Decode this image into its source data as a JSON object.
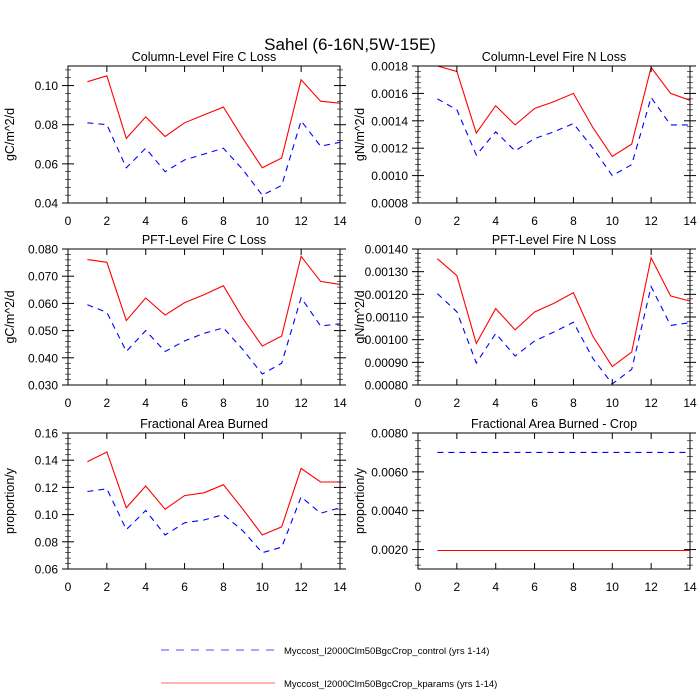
{
  "figure": {
    "title": "Sahel (6-16N,5W-15E)"
  },
  "legend": {
    "placement": "bottom-center",
    "entries": [
      {
        "label": "Myccost_I2000Clm50BgcCrop_control (yrs 1-14)",
        "color": "#0000ff",
        "style": "dashed"
      },
      {
        "label": "Myccost_I2000Clm50BgcCrop_kparams (yrs 1-14)",
        "color": "#ff0000",
        "style": "solid"
      }
    ]
  },
  "chart_data": [
    {
      "type": "line",
      "title": "Column-Level Fire C Loss",
      "xlabel": "",
      "ylabel": "gC/m^2/d",
      "xlim": [
        0,
        14
      ],
      "ylim": [
        0.04,
        0.11
      ],
      "xticks": [
        0,
        2,
        4,
        6,
        8,
        10,
        12,
        14
      ],
      "xtick_labels": [
        "0",
        "2",
        "4",
        "6",
        "8",
        "10",
        "12",
        "14"
      ],
      "yticks": [
        0.04,
        0.06,
        0.08,
        0.1
      ],
      "ytick_labels": [
        "0.04",
        "0.06",
        "0.08",
        "0.10"
      ],
      "grid": false,
      "x": [
        1,
        2,
        3,
        4,
        5,
        6,
        7,
        8,
        9,
        10,
        11,
        12,
        13,
        14
      ],
      "series": [
        {
          "name": "Myccost_I2000Clm50BgcCrop_control (yrs 1-14)",
          "color": "#0000ff",
          "style": "dashed",
          "values": [
            0.081,
            0.08,
            0.058,
            0.068,
            0.056,
            0.062,
            0.065,
            0.068,
            0.057,
            0.044,
            0.049,
            0.082,
            0.069,
            0.071
          ]
        },
        {
          "name": "Myccost_I2000Clm50BgcCrop_kparams (yrs 1-14)",
          "color": "#ff0000",
          "style": "solid",
          "values": [
            0.102,
            0.105,
            0.073,
            0.084,
            0.074,
            0.081,
            0.085,
            0.089,
            0.073,
            0.058,
            0.063,
            0.103,
            0.092,
            0.091
          ]
        }
      ]
    },
    {
      "type": "line",
      "title": "Column-Level Fire N Loss",
      "xlabel": "",
      "ylabel": "gN/m^2/d",
      "xlim": [
        0,
        14
      ],
      "ylim": [
        0.0008,
        0.0018
      ],
      "xticks": [
        0,
        2,
        4,
        6,
        8,
        10,
        12,
        14
      ],
      "xtick_labels": [
        "0",
        "2",
        "4",
        "6",
        "8",
        "10",
        "12",
        "14"
      ],
      "yticks": [
        0.0008,
        0.001,
        0.0012,
        0.0014,
        0.0016,
        0.0018
      ],
      "ytick_labels": [
        "0.0008",
        "0.0010",
        "0.0012",
        "0.0014",
        "0.0016",
        "0.0018"
      ],
      "grid": false,
      "x": [
        1,
        2,
        3,
        4,
        5,
        6,
        7,
        8,
        9,
        10,
        11,
        12,
        13,
        14
      ],
      "series": [
        {
          "name": "Myccost_I2000Clm50BgcCrop_control (yrs 1-14)",
          "color": "#0000ff",
          "style": "dashed",
          "values": [
            0.00156,
            0.00148,
            0.00115,
            0.00132,
            0.00118,
            0.00127,
            0.00132,
            0.00138,
            0.0012,
            0.001,
            0.00108,
            0.00157,
            0.00137,
            0.00137
          ]
        },
        {
          "name": "Myccost_I2000Clm50BgcCrop_kparams (yrs 1-14)",
          "color": "#ff0000",
          "style": "solid",
          "values": [
            0.0018,
            0.00176,
            0.00131,
            0.00151,
            0.00137,
            0.00149,
            0.00154,
            0.0016,
            0.00135,
            0.00114,
            0.00123,
            0.00179,
            0.0016,
            0.00155
          ]
        }
      ]
    },
    {
      "type": "line",
      "title": "PFT-Level Fire C Loss",
      "xlabel": "",
      "ylabel": "gC/m^2/d",
      "xlim": [
        0,
        14
      ],
      "ylim": [
        0.03,
        0.08
      ],
      "xticks": [
        0,
        2,
        4,
        6,
        8,
        10,
        12,
        14
      ],
      "xtick_labels": [
        "0",
        "2",
        "4",
        "6",
        "8",
        "10",
        "12",
        "14"
      ],
      "yticks": [
        0.03,
        0.04,
        0.05,
        0.06,
        0.07,
        0.08
      ],
      "ytick_labels": [
        "0.030",
        "0.040",
        "0.050",
        "0.060",
        "0.070",
        "0.080"
      ],
      "grid": false,
      "x": [
        1,
        2,
        3,
        4,
        5,
        6,
        7,
        8,
        9,
        10,
        11,
        12,
        13,
        14
      ],
      "series": [
        {
          "name": "Myccost_I2000Clm50BgcCrop_control (yrs 1-14)",
          "color": "#0000ff",
          "style": "dashed",
          "values": [
            0.0595,
            0.0567,
            0.0423,
            0.05,
            0.0423,
            0.0462,
            0.049,
            0.051,
            0.043,
            0.034,
            0.038,
            0.0621,
            0.0517,
            0.0525
          ]
        },
        {
          "name": "Myccost_I2000Clm50BgcCrop_kparams (yrs 1-14)",
          "color": "#ff0000",
          "style": "solid",
          "values": [
            0.0761,
            0.0751,
            0.0537,
            0.062,
            0.0557,
            0.0603,
            0.0632,
            0.0665,
            0.0545,
            0.0443,
            0.048,
            0.0773,
            0.0681,
            0.067
          ]
        }
      ]
    },
    {
      "type": "line",
      "title": "PFT-Level Fire N Loss",
      "xlabel": "",
      "ylabel": "gN/m^2/d",
      "xlim": [
        0,
        14
      ],
      "ylim": [
        0.0008,
        0.0014
      ],
      "xticks": [
        0,
        2,
        4,
        6,
        8,
        10,
        12,
        14
      ],
      "xtick_labels": [
        "0",
        "2",
        "4",
        "6",
        "8",
        "10",
        "12",
        "14"
      ],
      "yticks": [
        0.0008,
        0.0009,
        0.001,
        0.0011,
        0.0012,
        0.0013,
        0.0014
      ],
      "ytick_labels": [
        "0.00080",
        "0.00090",
        "0.00100",
        "0.00110",
        "0.00120",
        "0.00130",
        "0.00140"
      ],
      "grid": false,
      "x": [
        1,
        2,
        3,
        4,
        5,
        6,
        7,
        8,
        9,
        10,
        11,
        12,
        13,
        14
      ],
      "series": [
        {
          "name": "Myccost_I2000Clm50BgcCrop_control (yrs 1-14)",
          "color": "#0000ff",
          "style": "dashed",
          "values": [
            0.001203,
            0.001123,
            0.000897,
            0.001027,
            0.000928,
            0.000994,
            0.001034,
            0.001077,
            0.000917,
            0.000805,
            0.000869,
            0.001234,
            0.001063,
            0.001075
          ]
        },
        {
          "name": "Myccost_I2000Clm50BgcCrop_kparams (yrs 1-14)",
          "color": "#ff0000",
          "style": "solid",
          "values": [
            0.001357,
            0.001282,
            0.000983,
            0.001137,
            0.001043,
            0.001122,
            0.001161,
            0.001207,
            0.001015,
            0.000881,
            0.000945,
            0.001361,
            0.001193,
            0.00117
          ]
        }
      ]
    },
    {
      "type": "line",
      "title": "Fractional Area Burned",
      "xlabel": "",
      "ylabel": "proportion/y",
      "xlim": [
        0,
        14
      ],
      "ylim": [
        0.06,
        0.16
      ],
      "xticks": [
        0,
        2,
        4,
        6,
        8,
        10,
        12,
        14
      ],
      "xtick_labels": [
        "0",
        "2",
        "4",
        "6",
        "8",
        "10",
        "12",
        "14"
      ],
      "yticks": [
        0.06,
        0.08,
        0.1,
        0.12,
        0.14,
        0.16
      ],
      "ytick_labels": [
        "0.06",
        "0.08",
        "0.10",
        "0.12",
        "0.14",
        "0.16"
      ],
      "grid": false,
      "x": [
        1,
        2,
        3,
        4,
        5,
        6,
        7,
        8,
        9,
        10,
        11,
        12,
        13,
        14
      ],
      "series": [
        {
          "name": "Myccost_I2000Clm50BgcCrop_control (yrs 1-14)",
          "color": "#0000ff",
          "style": "dashed",
          "values": [
            0.117,
            0.119,
            0.089,
            0.103,
            0.085,
            0.094,
            0.096,
            0.1,
            0.088,
            0.072,
            0.076,
            0.113,
            0.101,
            0.105
          ]
        },
        {
          "name": "Myccost_I2000Clm50BgcCrop_kparams (yrs 1-14)",
          "color": "#ff0000",
          "style": "solid",
          "values": [
            0.139,
            0.146,
            0.105,
            0.121,
            0.104,
            0.114,
            0.116,
            0.122,
            0.104,
            0.085,
            0.091,
            0.134,
            0.124,
            0.124
          ]
        }
      ]
    },
    {
      "type": "line",
      "title": "Fractional Area Burned - Crop",
      "xlabel": "",
      "ylabel": "proportion/y",
      "xlim": [
        0,
        14
      ],
      "ylim": [
        0.001,
        0.008
      ],
      "xticks": [
        0,
        2,
        4,
        6,
        8,
        10,
        12,
        14
      ],
      "xtick_labels": [
        "0",
        "2",
        "4",
        "6",
        "8",
        "10",
        "12",
        "14"
      ],
      "yticks": [
        0.002,
        0.004,
        0.006,
        0.008
      ],
      "ytick_labels": [
        "0.0020",
        "0.0040",
        "0.0060",
        "0.0080"
      ],
      "grid": false,
      "x": [
        1,
        2,
        3,
        4,
        5,
        6,
        7,
        8,
        9,
        10,
        11,
        12,
        13,
        14
      ],
      "series": [
        {
          "name": "Myccost_I2000Clm50BgcCrop_control (yrs 1-14)",
          "color": "#0000ff",
          "style": "dashed",
          "values": [
            0.007,
            0.007,
            0.007,
            0.007,
            0.007,
            0.007,
            0.007,
            0.007,
            0.007,
            0.007,
            0.007,
            0.007,
            0.007,
            0.007
          ]
        },
        {
          "name": "Myccost_I2000Clm50BgcCrop_kparams (yrs 1-14)",
          "color": "#ff0000",
          "style": "solid",
          "values": [
            0.00195,
            0.00195,
            0.00195,
            0.00195,
            0.00195,
            0.00195,
            0.00195,
            0.00195,
            0.00195,
            0.00195,
            0.00195,
            0.00195,
            0.00195,
            0.00195
          ]
        }
      ]
    }
  ]
}
